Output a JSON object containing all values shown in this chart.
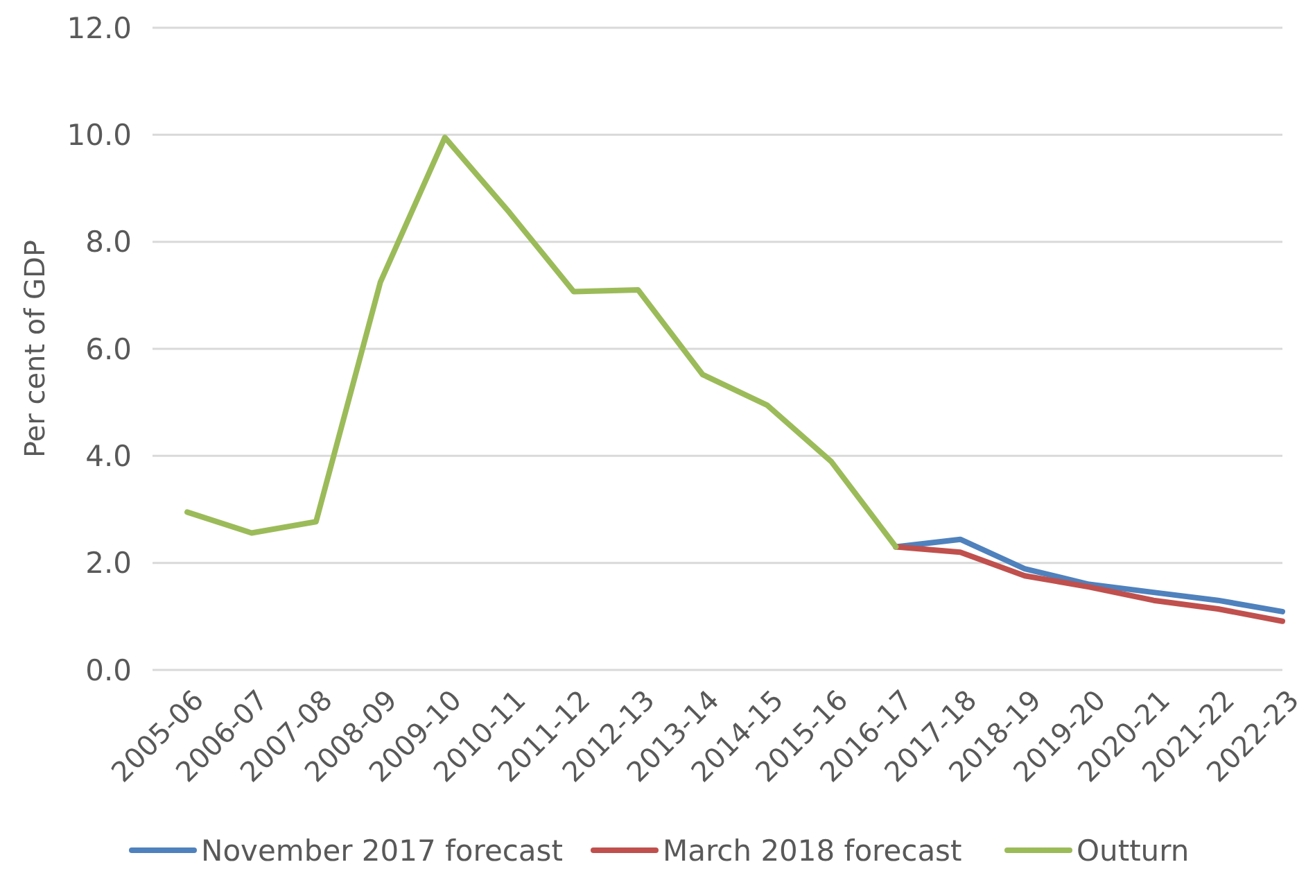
{
  "chart_data": {
    "type": "line",
    "ylabel": "Per cent of GDP",
    "categories": [
      "2005-06",
      "2006-07",
      "2007-08",
      "2008-09",
      "2009-10",
      "2010-11",
      "2011-12",
      "2012-13",
      "2013-14",
      "2014-15",
      "2015-16",
      "2016-17",
      "2017-18",
      "2018-19",
      "2019-20",
      "2020-21",
      "2021-22",
      "2022-23"
    ],
    "series": [
      {
        "name": "November 2017 forecast",
        "color": "#4f81bd",
        "values": [
          null,
          null,
          null,
          null,
          null,
          null,
          null,
          null,
          null,
          null,
          null,
          2.3,
          2.44,
          1.89,
          1.6,
          1.45,
          1.3,
          1.09
        ]
      },
      {
        "name": "March 2018 forecast",
        "color": "#c0504d",
        "values": [
          null,
          null,
          null,
          null,
          null,
          null,
          null,
          null,
          null,
          null,
          null,
          2.3,
          2.2,
          1.76,
          1.55,
          1.3,
          1.14,
          0.91
        ]
      },
      {
        "name": "Outturn",
        "color": "#9bbb59",
        "values": [
          2.95,
          2.56,
          2.77,
          7.25,
          9.95,
          8.55,
          7.07,
          7.1,
          5.52,
          4.95,
          3.89,
          2.3,
          null,
          null,
          null,
          null,
          null,
          null
        ]
      }
    ],
    "ylim": [
      0,
      12
    ],
    "yticks": [
      {
        "value": 0,
        "label": "0.0"
      },
      {
        "value": 2,
        "label": "2.0"
      },
      {
        "value": 4,
        "label": "4.0"
      },
      {
        "value": 6,
        "label": "6.0"
      },
      {
        "value": 8,
        "label": "8.0"
      },
      {
        "value": 10,
        "label": "10.0"
      },
      {
        "value": 12,
        "label": "12.0"
      }
    ],
    "grid": "y",
    "legend": "bottom",
    "marker": "none",
    "line_style": "solid"
  }
}
